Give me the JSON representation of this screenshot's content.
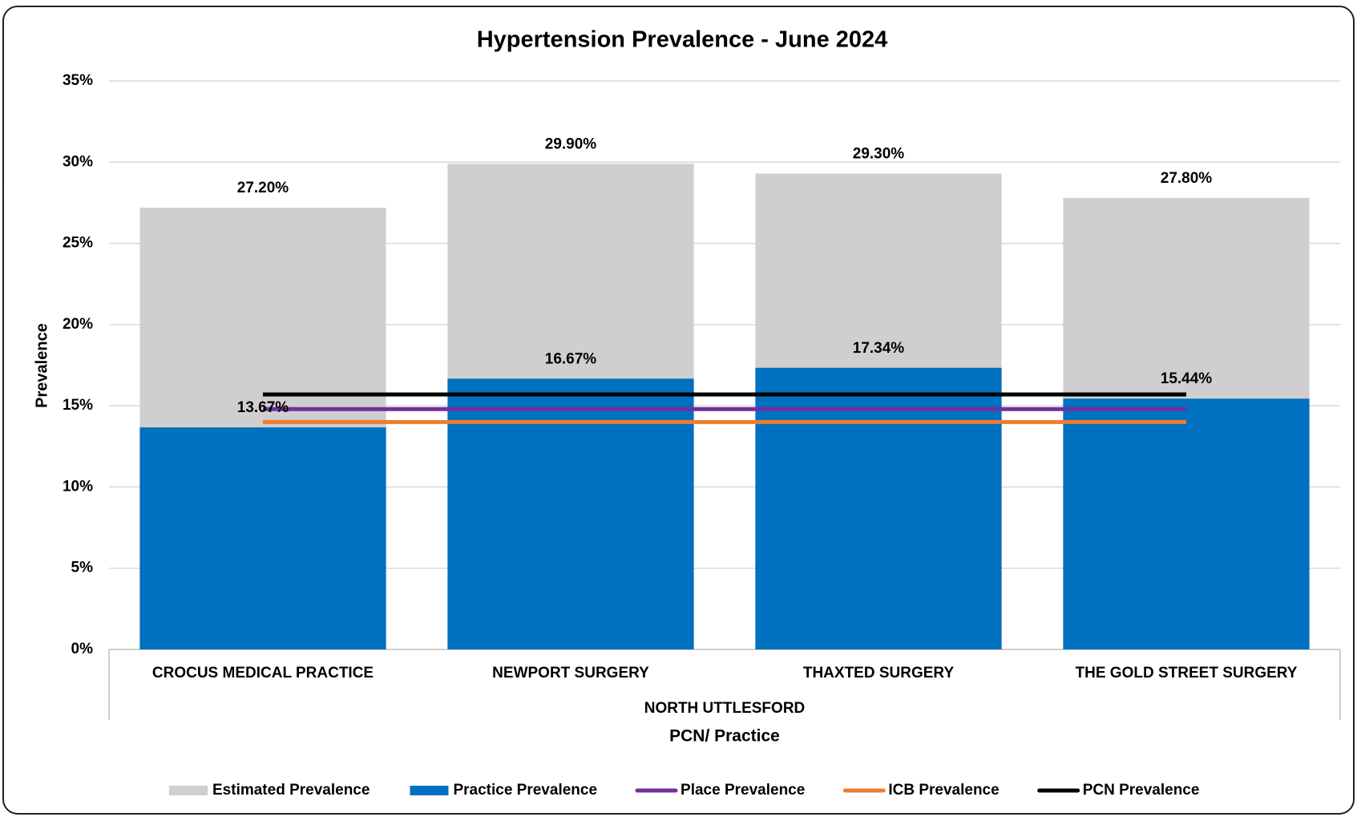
{
  "chart_data": {
    "type": "bar",
    "title": "Hypertension Prevalence - June 2024",
    "y_label": "Prevalence",
    "x_label": "PCN/ Practice",
    "group_label": "NORTH UTTLESFORD",
    "categories": [
      "CROCUS MEDICAL PRACTICE",
      "NEWPORT SURGERY",
      "THAXTED SURGERY",
      "THE GOLD STREET SURGERY"
    ],
    "ylim": [
      0,
      35
    ],
    "yticks": [
      {
        "value": 0,
        "label": "0%"
      },
      {
        "value": 5,
        "label": "5%"
      },
      {
        "value": 10,
        "label": "10%"
      },
      {
        "value": 15,
        "label": "15%"
      },
      {
        "value": 20,
        "label": "20%"
      },
      {
        "value": 25,
        "label": "25%"
      },
      {
        "value": 30,
        "label": "30%"
      },
      {
        "value": 35,
        "label": "35%"
      }
    ],
    "grid": true,
    "legend": "bottom",
    "series": [
      {
        "name": "Estimated Prevalence",
        "type": "bar",
        "color": "#d0cece",
        "values": [
          27.2,
          29.9,
          29.3,
          27.8
        ],
        "value_labels": [
          "27.20%",
          "29.90%",
          "29.30%",
          "27.80%"
        ]
      },
      {
        "name": "Practice Prevalence",
        "type": "bar",
        "color": "#0070c0",
        "values": [
          13.67,
          16.67,
          17.34,
          15.44
        ],
        "value_labels": [
          "13.67%",
          "16.67%",
          "17.34%",
          "15.44%"
        ]
      },
      {
        "name": "Place Prevalence",
        "type": "line",
        "color": "#7030a0",
        "values": [
          14.8,
          14.8,
          14.8,
          14.8
        ]
      },
      {
        "name": "ICB Prevalence",
        "type": "line",
        "color": "#ed7d31",
        "values": [
          14.0,
          14.0,
          14.0,
          14.0
        ]
      },
      {
        "name": "PCN Prevalence",
        "type": "line",
        "color": "#000000",
        "values": [
          15.7,
          15.7,
          15.7,
          15.7
        ]
      }
    ]
  }
}
